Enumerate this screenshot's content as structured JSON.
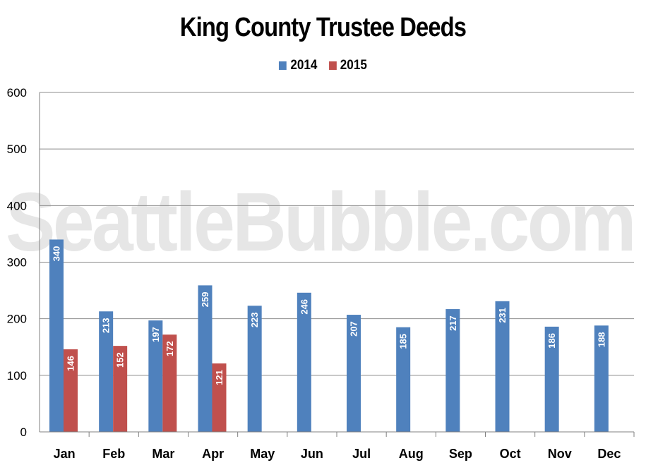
{
  "chart_data": {
    "type": "bar",
    "title": "King County Trustee Deeds",
    "watermark": "SeattleBubble.com",
    "categories": [
      "Jan",
      "Feb",
      "Mar",
      "Apr",
      "May",
      "Jun",
      "Jul",
      "Aug",
      "Sep",
      "Oct",
      "Nov",
      "Dec"
    ],
    "series": [
      {
        "name": "2014",
        "color": "#4f81bd",
        "values": [
          340,
          213,
          197,
          259,
          223,
          246,
          207,
          185,
          217,
          231,
          186,
          188
        ]
      },
      {
        "name": "2015",
        "color": "#c0504d",
        "values": [
          146,
          152,
          172,
          121,
          null,
          null,
          null,
          null,
          null,
          null,
          null,
          null
        ]
      }
    ],
    "ylim": [
      0,
      600
    ],
    "yticks": [
      0,
      100,
      200,
      300,
      400,
      500,
      600
    ],
    "grid": true,
    "legend": "top-center",
    "data_labels": true
  }
}
